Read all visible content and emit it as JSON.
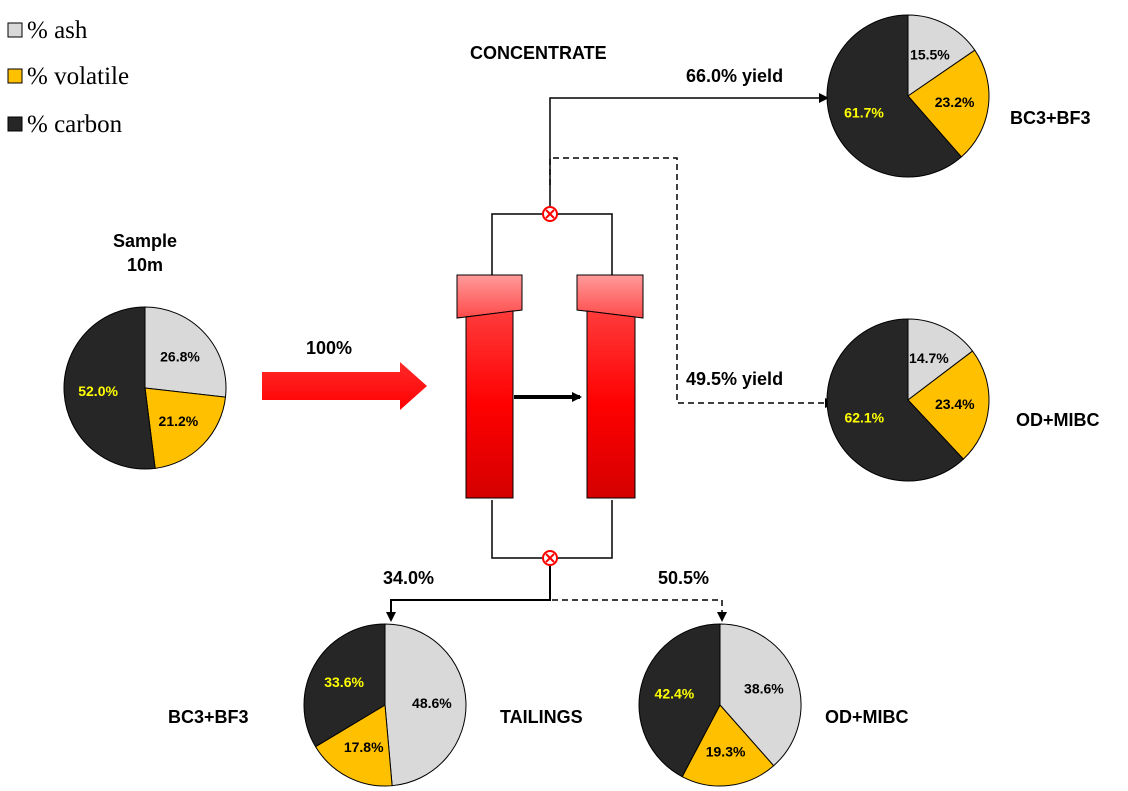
{
  "legend": [
    {
      "label": "% ash",
      "color": "#d9d9d9"
    },
    {
      "label": "% volatile",
      "color": "#ffc000"
    },
    {
      "label": "% carbon",
      "color": "#262626"
    }
  ],
  "colors": {
    "ash": "#d9d9d9",
    "volatile": "#ffc000",
    "carbon": "#262626",
    "column": "#ff0000",
    "feed_arrow": "#ff0000",
    "valve": "#ff0000",
    "carbon_label": "#ffff00",
    "lines": "#000000"
  },
  "labels": {
    "concentrate": "CONCENTRATE",
    "tailings": "TAILINGS",
    "feed_percent": "100%",
    "sample_title": "Sample",
    "sample_subtitle": "10m",
    "yield_bc3": "66.0% yield",
    "yield_od": "49.5% yield",
    "tail_bc3": "34.0%",
    "tail_od": "50.5%"
  },
  "chart_data": [
    {
      "type": "pie",
      "id": "sample-feed",
      "title": "Sample 10m",
      "slices": [
        {
          "name": "% ash",
          "value": 26.8,
          "label": "26.8%"
        },
        {
          "name": "% volatile",
          "value": 21.2,
          "label": "21.2%"
        },
        {
          "name": "% carbon",
          "value": 52.0,
          "label": "52.0%"
        }
      ]
    },
    {
      "type": "pie",
      "id": "concentrate-bc3",
      "title": "BC3+BF3",
      "slices": [
        {
          "name": "% ash",
          "value": 15.5,
          "label": "15.5%"
        },
        {
          "name": "% volatile",
          "value": 23.2,
          "label": "23.2%"
        },
        {
          "name": "% carbon",
          "value": 61.7,
          "label": "61.7%"
        }
      ]
    },
    {
      "type": "pie",
      "id": "concentrate-od",
      "title": "OD+MIBC",
      "slices": [
        {
          "name": "% ash",
          "value": 14.7,
          "label": "14.7%"
        },
        {
          "name": "% volatile",
          "value": 23.4,
          "label": "23.4%"
        },
        {
          "name": "% carbon",
          "value": 62.1,
          "label": "62.1%"
        }
      ]
    },
    {
      "type": "pie",
      "id": "tailings-bc3",
      "title": "BC3+BF3",
      "slices": [
        {
          "name": "% ash",
          "value": 48.6,
          "label": "48.6%"
        },
        {
          "name": "% volatile",
          "value": 17.8,
          "label": "17.8%"
        },
        {
          "name": "% carbon",
          "value": 33.6,
          "label": "33.6%"
        }
      ]
    },
    {
      "type": "pie",
      "id": "tailings-od",
      "title": "OD+MIBC",
      "slices": [
        {
          "name": "% ash",
          "value": 38.6,
          "label": "38.6%"
        },
        {
          "name": "% volatile",
          "value": 19.3,
          "label": "19.3%"
        },
        {
          "name": "% carbon",
          "value": 42.4,
          "label": "42.4%"
        }
      ]
    }
  ]
}
